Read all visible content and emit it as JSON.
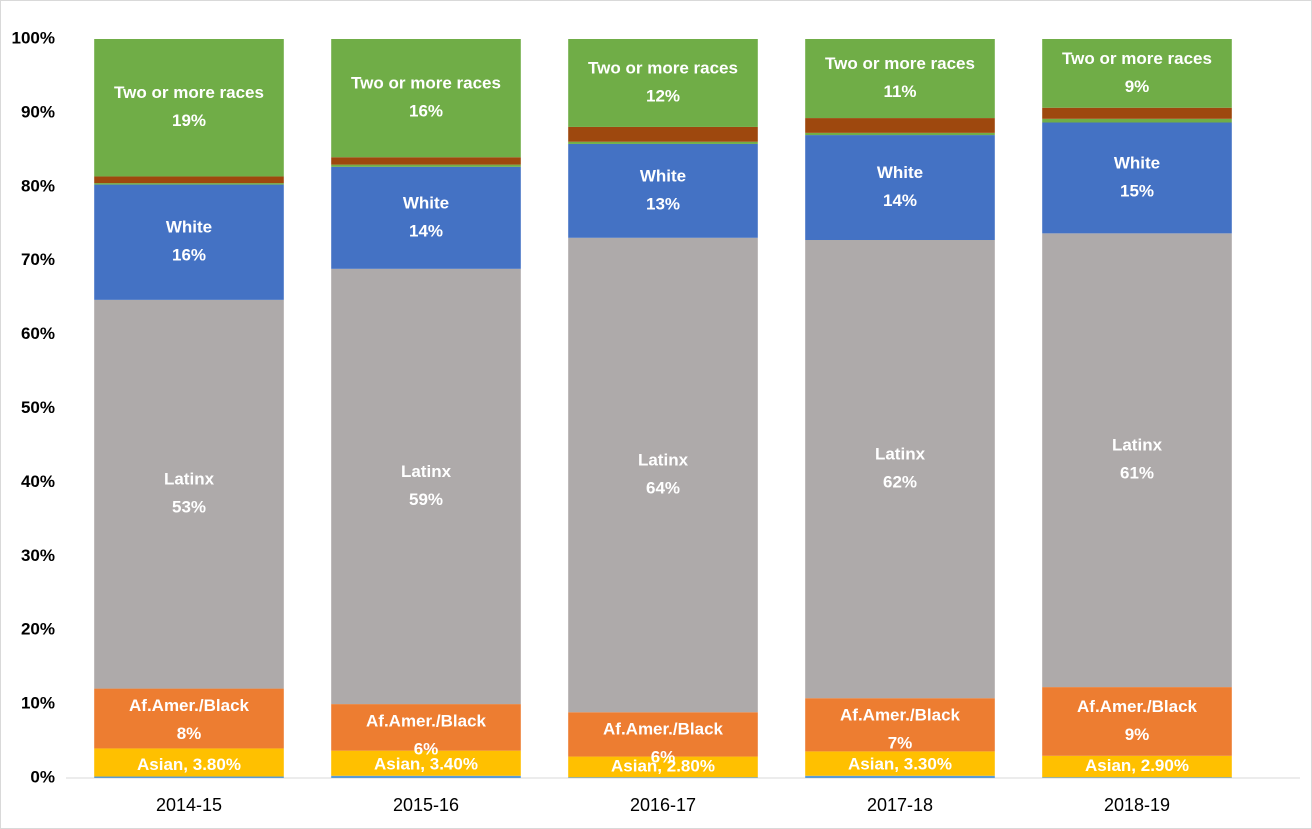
{
  "chart_data": {
    "type": "stacked_bar",
    "categories": [
      "2014-15",
      "2015-16",
      "2016-17",
      "2017-18",
      "2018-19"
    ],
    "series": [
      {
        "color": "#5b9bd5",
        "values": [
          0.2,
          0.3,
          0.1,
          0.3,
          0.1
        ]
      },
      {
        "name": "Asian",
        "color": "#ffc000",
        "values": [
          3.8,
          3.4,
          2.8,
          3.3,
          2.9
        ],
        "value_labels": [
          "Asian, 3.80%",
          "Asian, 3.40%",
          "Asian, 2.80%",
          "Asian, 3.30%",
          "Asian, 2.90%"
        ]
      },
      {
        "name": "Af.Amer./Black",
        "color": "#ed7d31",
        "values": [
          8.1,
          6.3,
          6.0,
          7.2,
          9.3
        ],
        "value_labels": [
          "8%",
          "6%",
          "6%",
          "7%",
          "9%"
        ]
      },
      {
        "name": "Latinx",
        "color": "#aeaaaa",
        "values": [
          52.6,
          58.9,
          64.2,
          62.0,
          61.4
        ],
        "value_labels": [
          "53%",
          "59%",
          "64%",
          "62%",
          "61%"
        ]
      },
      {
        "name": "White",
        "color": "#4472c4",
        "values": [
          15.6,
          13.8,
          12.7,
          14.2,
          15.0
        ],
        "value_labels": [
          "16%",
          "14%",
          "13%",
          "14%",
          "15%"
        ]
      },
      {
        "color": "#70ad47",
        "values": [
          0.2,
          0.3,
          0.3,
          0.3,
          0.5
        ]
      },
      {
        "color": "#9e480e",
        "values": [
          0.9,
          1.0,
          2.0,
          2.0,
          1.5
        ]
      },
      {
        "name": "Two or more races",
        "color": "#70ad47",
        "values": [
          18.6,
          16.0,
          11.9,
          10.7,
          9.3
        ],
        "value_labels": [
          "19%",
          "16%",
          "12%",
          "11%",
          "9%"
        ]
      }
    ],
    "ylim": [
      0,
      100
    ],
    "yticks": [
      {
        "value": 0,
        "label": "0%"
      },
      {
        "value": 10,
        "label": "10%"
      },
      {
        "value": 20,
        "label": "20%"
      },
      {
        "value": 30,
        "label": "30%"
      },
      {
        "value": 40,
        "label": "40%"
      },
      {
        "value": 50,
        "label": "50%"
      },
      {
        "value": 60,
        "label": "60%"
      },
      {
        "value": 70,
        "label": "70%"
      },
      {
        "value": 80,
        "label": "80%"
      },
      {
        "value": 90,
        "label": "90%"
      },
      {
        "value": 100,
        "label": "100%"
      }
    ]
  }
}
